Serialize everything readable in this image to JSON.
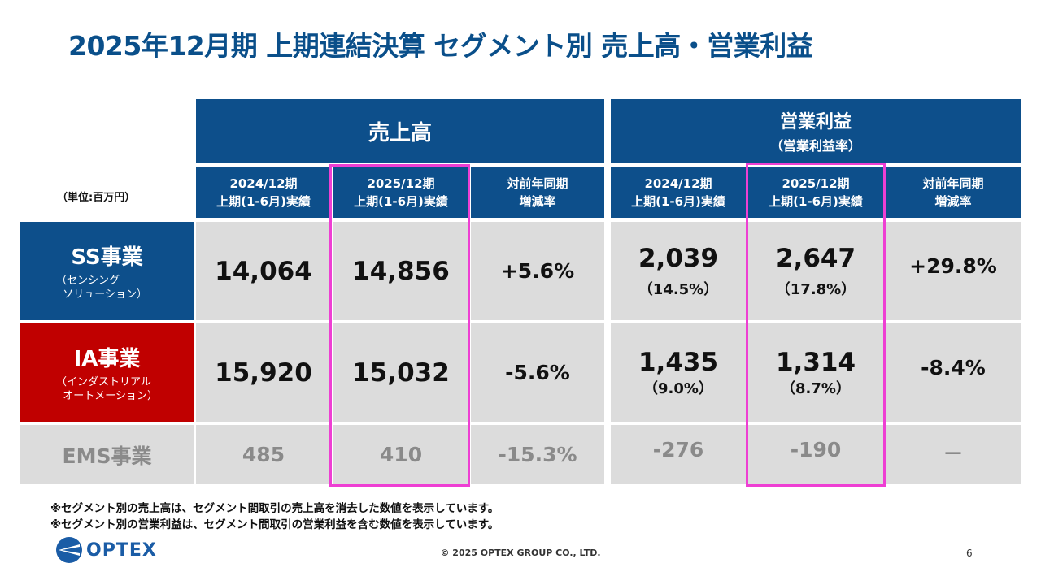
{
  "title": "2025年12月期 上期連結決算 セグメント別 売上高・営業利益",
  "unit_label": "（単位:百万円）",
  "sales_header": "売上高",
  "profit_header": {
    "line1": "営業利益",
    "line2": "（営業利益率）"
  },
  "columns": {
    "prev": {
      "line1": "2024/12期",
      "line2": "上期(1-6月)実績"
    },
    "curr": {
      "line1": "2025/12期",
      "line2": "上期(1-6月)実績"
    },
    "yoy": {
      "line1": "対前年同期",
      "line2": "増減率"
    }
  },
  "segments": [
    {
      "name": "SS事業",
      "sub1": "（センシング",
      "sub2": "ソリューション）",
      "color": "#0d4f8b",
      "sales_prev": "14,064",
      "sales_curr": "14,856",
      "sales_yoy": "+5.6%",
      "profit_prev": "2,039",
      "profit_prev_rate": "（14.5%）",
      "profit_curr": "2,647",
      "profit_curr_rate": "（17.8%）",
      "profit_yoy": "+29.8%"
    },
    {
      "name": "IA事業",
      "sub1": "（インダストリアル",
      "sub2": "オートメーション）",
      "color": "#c00000",
      "sales_prev": "15,920",
      "sales_curr": "15,032",
      "sales_yoy": "-5.6%",
      "profit_prev": "1,435",
      "profit_prev_rate": "（9.0%）",
      "profit_curr": "1,314",
      "profit_curr_rate": "（8.7%）",
      "profit_yoy": "-8.4%"
    },
    {
      "name": "EMS事業",
      "sales_prev": "485",
      "sales_curr": "410",
      "sales_yoy": "-15.3%",
      "profit_prev": "-276",
      "profit_curr": "-190",
      "profit_yoy": "－"
    }
  ],
  "notes": [
    "※セグメント別の売上高は、セグメント間取引の売上高を消去した数値を表示しています。",
    "※セグメント別の営業利益は、セグメント間取引の営業利益を含む数値を表示しています。"
  ],
  "logo_text": "OPTEX",
  "footer": "© 2025 OPTEX GROUP CO., LTD.",
  "page_number": "6",
  "highlight_color": "#ee3fd3"
}
